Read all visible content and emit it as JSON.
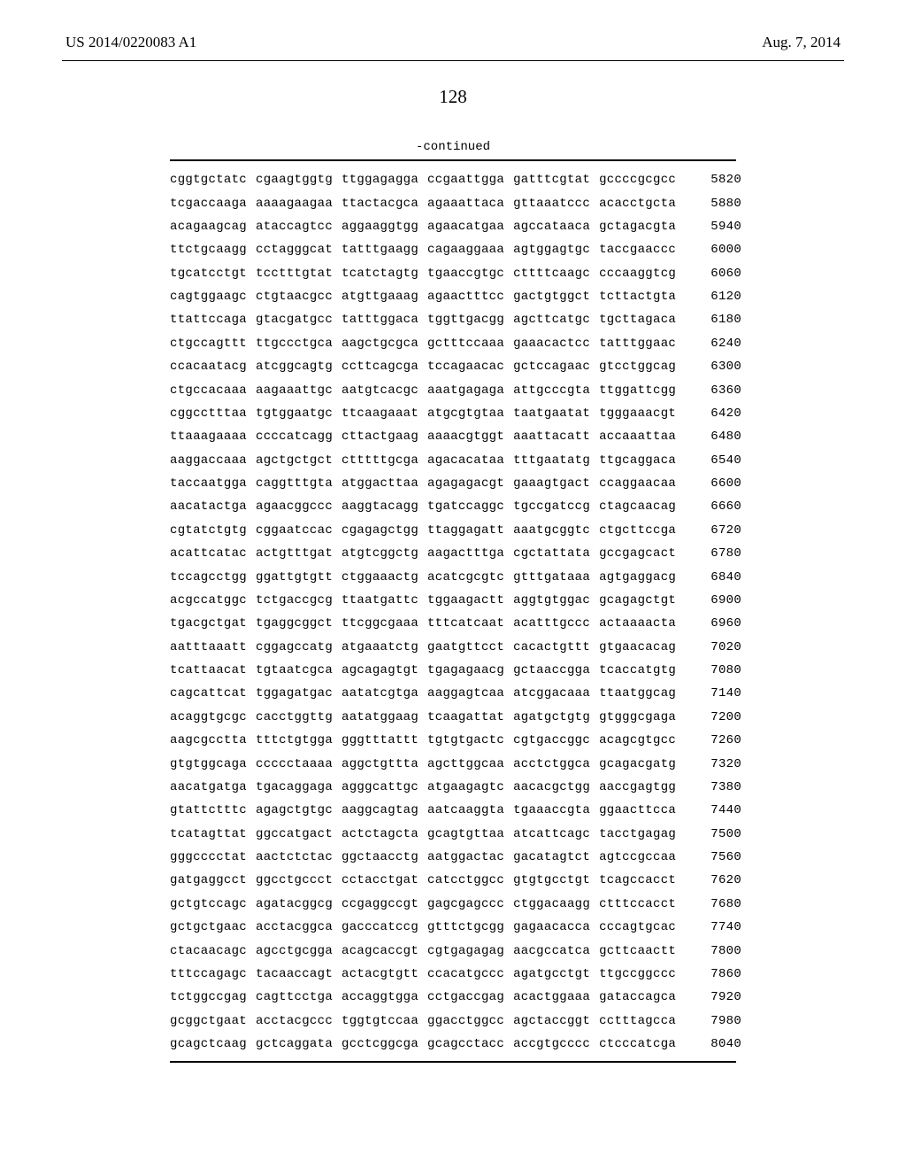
{
  "header": {
    "left": "US 2014/0220083 A1",
    "right": "Aug. 7, 2014"
  },
  "page_number": "128",
  "continued_label": "-continued",
  "sequence": {
    "type": "table",
    "font_family": "Courier New",
    "font_size": 14,
    "rows": [
      {
        "groups": [
          "cggtgctatc",
          "cgaagtggtg",
          "ttggagagga",
          "ccgaattgga",
          "gatttcgtat",
          "gccccgcgcc"
        ],
        "num": "5820"
      },
      {
        "groups": [
          "tcgaccaaga",
          "aaaagaagaa",
          "ttactacgca",
          "agaaattaca",
          "gttaaatccc",
          "acacctgcta"
        ],
        "num": "5880"
      },
      {
        "groups": [
          "acagaagcag",
          "ataccagtcc",
          "aggaaggtgg",
          "agaacatgaa",
          "agccataaca",
          "gctagacgta"
        ],
        "num": "5940"
      },
      {
        "groups": [
          "ttctgcaagg",
          "cctagggcat",
          "tatttgaagg",
          "cagaaggaaa",
          "agtggagtgc",
          "taccgaaccc"
        ],
        "num": "6000"
      },
      {
        "groups": [
          "tgcatcctgt",
          "tcctttgtat",
          "tcatctagtg",
          "tgaaccgtgc",
          "cttttcaagc",
          "cccaaggtcg"
        ],
        "num": "6060"
      },
      {
        "groups": [
          "cagtggaagc",
          "ctgtaacgcc",
          "atgttgaaag",
          "agaactttcc",
          "gactgtggct",
          "tcttactgta"
        ],
        "num": "6120"
      },
      {
        "groups": [
          "ttattccaga",
          "gtacgatgcc",
          "tatttggaca",
          "tggttgacgg",
          "agcttcatgc",
          "tgcttagaca"
        ],
        "num": "6180"
      },
      {
        "groups": [
          "ctgccagttt",
          "ttgccctgca",
          "aagctgcgca",
          "gctttccaaa",
          "gaaacactcc",
          "tatttggaac"
        ],
        "num": "6240"
      },
      {
        "groups": [
          "ccacaatacg",
          "atcggcagtg",
          "ccttcagcga",
          "tccagaacac",
          "gctccagaac",
          "gtcctggcag"
        ],
        "num": "6300"
      },
      {
        "groups": [
          "ctgccacaaa",
          "aagaaattgc",
          "aatgtcacgc",
          "aaatgagaga",
          "attgcccgta",
          "ttggattcgg"
        ],
        "num": "6360"
      },
      {
        "groups": [
          "cggcctttaa",
          "tgtggaatgc",
          "ttcaagaaat",
          "atgcgtgtaa",
          "taatgaatat",
          "tgggaaacgt"
        ],
        "num": "6420"
      },
      {
        "groups": [
          "ttaaagaaaa",
          "ccccatcagg",
          "cttactgaag",
          "aaaacgtggt",
          "aaattacatt",
          "accaaattaa"
        ],
        "num": "6480"
      },
      {
        "groups": [
          "aaggaccaaa",
          "agctgctgct",
          "ctttttgcga",
          "agacacataa",
          "tttgaatatg",
          "ttgcaggaca"
        ],
        "num": "6540"
      },
      {
        "groups": [
          "taccaatgga",
          "caggtttgta",
          "atggacttaa",
          "agagagacgt",
          "gaaagtgact",
          "ccaggaacaa"
        ],
        "num": "6600"
      },
      {
        "groups": [
          "aacatactga",
          "agaacggccc",
          "aaggtacagg",
          "tgatccaggc",
          "tgccgatccg",
          "ctagcaacag"
        ],
        "num": "6660"
      },
      {
        "groups": [
          "cgtatctgtg",
          "cggaatccac",
          "cgagagctgg",
          "ttaggagatt",
          "aaatgcggtc",
          "ctgcttccga"
        ],
        "num": "6720"
      },
      {
        "groups": [
          "acattcatac",
          "actgtttgat",
          "atgtcggctg",
          "aagactttga",
          "cgctattata",
          "gccgagcact"
        ],
        "num": "6780"
      },
      {
        "groups": [
          "tccagcctgg",
          "ggattgtgtt",
          "ctggaaactg",
          "acatcgcgtc",
          "gtttgataaa",
          "agtgaggacg"
        ],
        "num": "6840"
      },
      {
        "groups": [
          "acgccatggc",
          "tctgaccgcg",
          "ttaatgattc",
          "tggaagactt",
          "aggtgtggac",
          "gcagagctgt"
        ],
        "num": "6900"
      },
      {
        "groups": [
          "tgacgctgat",
          "tgaggcggct",
          "ttcggcgaaa",
          "tttcatcaat",
          "acatttgccc",
          "actaaaacta"
        ],
        "num": "6960"
      },
      {
        "groups": [
          "aatttaaatt",
          "cggagccatg",
          "atgaaatctg",
          "gaatgttcct",
          "cacactgttt",
          "gtgaacacag"
        ],
        "num": "7020"
      },
      {
        "groups": [
          "tcattaacat",
          "tgtaatcgca",
          "agcagagtgt",
          "tgagagaacg",
          "gctaaccgga",
          "tcaccatgtg"
        ],
        "num": "7080"
      },
      {
        "groups": [
          "cagcattcat",
          "tggagatgac",
          "aatatcgtga",
          "aaggagtcaa",
          "atcggacaaa",
          "ttaatggcag"
        ],
        "num": "7140"
      },
      {
        "groups": [
          "acaggtgcgc",
          "cacctggttg",
          "aatatggaag",
          "tcaagattat",
          "agatgctgtg",
          "gtgggcgaga"
        ],
        "num": "7200"
      },
      {
        "groups": [
          "aagcgcctta",
          "tttctgtgga",
          "gggtttattt",
          "tgtgtgactc",
          "cgtgaccggc",
          "acagcgtgcc"
        ],
        "num": "7260"
      },
      {
        "groups": [
          "gtgtggcaga",
          "ccccctaaaa",
          "aggctgttta",
          "agcttggcaa",
          "acctctggca",
          "gcagacgatg"
        ],
        "num": "7320"
      },
      {
        "groups": [
          "aacatgatga",
          "tgacaggaga",
          "agggcattgc",
          "atgaagagtc",
          "aacacgctgg",
          "aaccgagtgg"
        ],
        "num": "7380"
      },
      {
        "groups": [
          "gtattctttc",
          "agagctgtgc",
          "aaggcagtag",
          "aatcaaggta",
          "tgaaaccgta",
          "ggaacttcca"
        ],
        "num": "7440"
      },
      {
        "groups": [
          "tcatagttat",
          "ggccatgact",
          "actctagcta",
          "gcagtgttaa",
          "atcattcagc",
          "tacctgagag"
        ],
        "num": "7500"
      },
      {
        "groups": [
          "gggcccctat",
          "aactctctac",
          "ggctaacctg",
          "aatggactac",
          "gacatagtct",
          "agtccgccaa"
        ],
        "num": "7560"
      },
      {
        "groups": [
          "gatgaggcct",
          "ggcctgccct",
          "cctacctgat",
          "catcctggcc",
          "gtgtgcctgt",
          "tcagccacct"
        ],
        "num": "7620"
      },
      {
        "groups": [
          "gctgtccagc",
          "agatacggcg",
          "ccgaggccgt",
          "gagcgagccc",
          "ctggacaagg",
          "ctttccacct"
        ],
        "num": "7680"
      },
      {
        "groups": [
          "gctgctgaac",
          "acctacggca",
          "gacccatccg",
          "gtttctgcgg",
          "gagaacacca",
          "cccagtgcac"
        ],
        "num": "7740"
      },
      {
        "groups": [
          "ctacaacagc",
          "agcctgcgga",
          "acagcaccgt",
          "cgtgagagag",
          "aacgccatca",
          "gcttcaactt"
        ],
        "num": "7800"
      },
      {
        "groups": [
          "tttccagagc",
          "tacaaccagt",
          "actacgtgtt",
          "ccacatgccc",
          "agatgcctgt",
          "ttgccggccc"
        ],
        "num": "7860"
      },
      {
        "groups": [
          "tctggccgag",
          "cagttcctga",
          "accaggtgga",
          "cctgaccgag",
          "acactggaaa",
          "gataccagca"
        ],
        "num": "7920"
      },
      {
        "groups": [
          "gcggctgaat",
          "acctacgccc",
          "tggtgtccaa",
          "ggacctggcc",
          "agctaccggt",
          "cctttagcca"
        ],
        "num": "7980"
      },
      {
        "groups": [
          "gcagctcaag",
          "gctcaggata",
          "gcctcggcga",
          "gcagcctacc",
          "accgtgcccc",
          "ctcccatcga"
        ],
        "num": "8040"
      }
    ]
  }
}
